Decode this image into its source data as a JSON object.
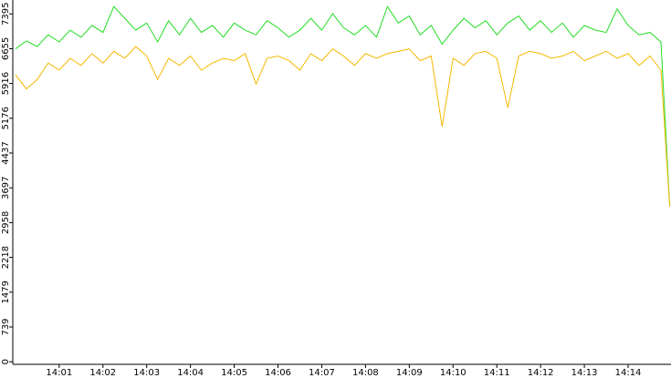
{
  "chart_data": {
    "type": "line",
    "x": [
      0,
      0.25,
      0.5,
      0.75,
      1,
      1.25,
      1.5,
      1.75,
      2,
      2.25,
      2.5,
      2.75,
      3,
      3.25,
      3.5,
      3.75,
      4,
      4.25,
      4.5,
      4.75,
      5,
      5.25,
      5.5,
      5.75,
      6,
      6.25,
      6.5,
      6.75,
      7,
      7.25,
      7.5,
      7.75,
      8,
      8.25,
      8.5,
      8.75,
      9,
      9.25,
      9.5,
      9.75,
      10,
      10.25,
      10.5,
      10.75,
      11,
      11.25,
      11.5,
      11.75,
      12,
      12.25,
      12.5,
      12.75,
      13,
      13.25,
      13.5,
      13.75,
      14,
      14.25,
      14.5,
      14.75,
      14.95
    ],
    "series": [
      {
        "color": "#22dd22",
        "values": [
          6650,
          6820,
          6700,
          6950,
          6800,
          7050,
          6900,
          7150,
          7000,
          7550,
          7300,
          7050,
          7200,
          6800,
          7250,
          6950,
          7300,
          7000,
          7150,
          6900,
          7200,
          7050,
          6950,
          7250,
          7100,
          6900,
          7050,
          7300,
          7050,
          7400,
          7100,
          6950,
          7150,
          6900,
          7550,
          7200,
          7350,
          6950,
          7150,
          6750,
          7050,
          7300,
          7100,
          7250,
          6950,
          7200,
          7350,
          7050,
          7250,
          7000,
          7200,
          6900,
          7150,
          7050,
          7000,
          7500,
          7150,
          6950,
          7000,
          6800,
          3300
        ]
      },
      {
        "color": "#f5b800",
        "values": [
          6100,
          5800,
          6000,
          6350,
          6200,
          6450,
          6300,
          6550,
          6350,
          6600,
          6450,
          6700,
          6500,
          6000,
          6450,
          6300,
          6500,
          6200,
          6350,
          6450,
          6400,
          6550,
          5900,
          6450,
          6500,
          6400,
          6200,
          6550,
          6400,
          6650,
          6500,
          6300,
          6550,
          6450,
          6550,
          6600,
          6650,
          6400,
          6500,
          5000,
          6450,
          6300,
          6550,
          6600,
          6450,
          5400,
          6500,
          6600,
          6550,
          6450,
          6500,
          6600,
          6400,
          6500,
          6600,
          6450,
          6550,
          6300,
          6500,
          6200,
          3300
        ]
      }
    ],
    "xlim": [
      -0.06,
      14.98
    ],
    "xticks": [
      {
        "value": 1,
        "label": "14:01"
      },
      {
        "value": 2,
        "label": "14:02"
      },
      {
        "value": 3,
        "label": "14:03"
      },
      {
        "value": 4,
        "label": "14:04"
      },
      {
        "value": 5,
        "label": "14:05"
      },
      {
        "value": 6,
        "label": "14:06"
      },
      {
        "value": 7,
        "label": "14:07"
      },
      {
        "value": 8,
        "label": "14:08"
      },
      {
        "value": 9,
        "label": "14:09"
      },
      {
        "value": 10,
        "label": "14:10"
      },
      {
        "value": 11,
        "label": "14:11"
      },
      {
        "value": 12,
        "label": "14:12"
      },
      {
        "value": 13,
        "label": "14:13"
      },
      {
        "value": 14,
        "label": "14:14"
      }
    ],
    "ylim": [
      -55,
      7690
    ],
    "yticks": [
      0,
      739,
      1479,
      2218,
      2958,
      3697,
      4437,
      5176,
      5916,
      6655,
      7395
    ]
  }
}
